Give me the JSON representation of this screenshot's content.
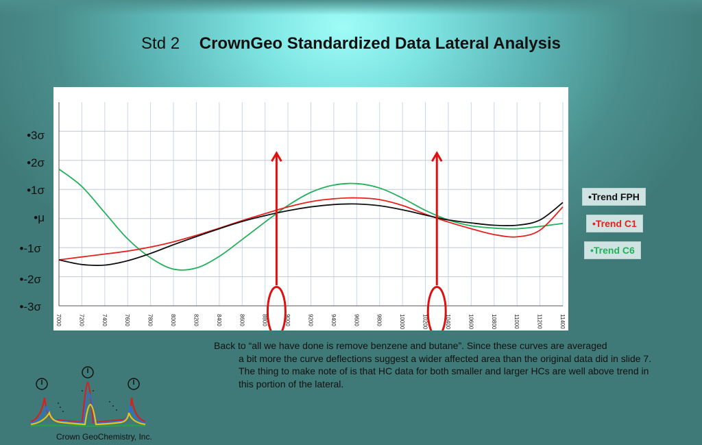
{
  "slide": {
    "title_prefix": "Std 2",
    "title_main": "CrownGeo Standardized Data Lateral Analysis",
    "caption_first": "Back to “all we have done is remove benzene and butane”. Since these curves are averaged",
    "caption_rest": "a bit more the curve deflections suggest a wider affected area than the original data did in slide 7. The thing to make note of is that HC data for both smaller and larger HCs are well above trend in this portion of the lateral.",
    "company": "Crown GeoChemistry, Inc."
  },
  "colors": {
    "fph": "#111111",
    "c1": "#e8201c",
    "c6": "#22b05a",
    "annotation": "#e01010",
    "grid": "#c8d6ea"
  },
  "chart_data": {
    "type": "line",
    "title": "",
    "xlabel": "",
    "ylabel": "",
    "xlim": [
      7000,
      11400
    ],
    "ylim": [
      -3,
      4
    ],
    "x_ticks": [
      7000,
      7200,
      7400,
      7600,
      7800,
      8000,
      8200,
      8400,
      8600,
      8800,
      9000,
      9200,
      9400,
      9600,
      9800,
      10000,
      10200,
      10400,
      10600,
      10800,
      11000,
      11200,
      11400
    ],
    "y_ticks": [
      {
        "value": 3,
        "label": "•3σ"
      },
      {
        "value": 2,
        "label": "•2σ"
      },
      {
        "value": 1,
        "label": "•1σ"
      },
      {
        "value": 0,
        "label": "•μ"
      },
      {
        "value": -1,
        "label": "•-1σ"
      },
      {
        "value": -2,
        "label": "•-2σ"
      },
      {
        "value": -3,
        "label": "•-3σ"
      }
    ],
    "legend_position": "right",
    "series": [
      {
        "name": "•Trend FPH",
        "color_key": "fph",
        "x": [
          7000,
          7200,
          7400,
          7600,
          7800,
          8000,
          8200,
          8400,
          8600,
          8800,
          9000,
          9200,
          9400,
          9600,
          9800,
          10000,
          10200,
          10400,
          10600,
          10800,
          11000,
          11200,
          11400
        ],
        "y": [
          -1.42,
          -1.58,
          -1.6,
          -1.45,
          -1.2,
          -0.9,
          -0.62,
          -0.35,
          -0.1,
          0.1,
          0.27,
          0.4,
          0.48,
          0.5,
          0.44,
          0.3,
          0.12,
          -0.05,
          -0.15,
          -0.23,
          -0.23,
          -0.05,
          0.55
        ]
      },
      {
        "name": "•Trend C1",
        "color_key": "c1",
        "x": [
          7000,
          7200,
          7400,
          7600,
          7800,
          8000,
          8200,
          8400,
          8600,
          8800,
          9000,
          9200,
          9400,
          9600,
          9800,
          10000,
          10200,
          10400,
          10600,
          10800,
          11000,
          11200,
          11400
        ],
        "y": [
          -1.42,
          -1.32,
          -1.22,
          -1.12,
          -0.98,
          -0.8,
          -0.58,
          -0.33,
          -0.07,
          0.17,
          0.4,
          0.58,
          0.68,
          0.71,
          0.65,
          0.45,
          0.15,
          -0.12,
          -0.35,
          -0.55,
          -0.63,
          -0.4,
          0.4
        ]
      },
      {
        "name": "•Trend C6",
        "color_key": "c6",
        "x": [
          7000,
          7200,
          7400,
          7600,
          7800,
          8000,
          8200,
          8400,
          8600,
          8800,
          9000,
          9200,
          9400,
          9600,
          9800,
          10000,
          10200,
          10400,
          10600,
          10800,
          11000,
          11200,
          11400
        ],
        "y": [
          1.7,
          1.1,
          0.2,
          -0.7,
          -1.35,
          -1.74,
          -1.7,
          -1.3,
          -0.72,
          -0.12,
          0.45,
          0.9,
          1.15,
          1.2,
          1.05,
          0.7,
          0.28,
          -0.05,
          -0.25,
          -0.33,
          -0.35,
          -0.27,
          -0.17
        ]
      }
    ],
    "annotations": [
      {
        "type": "arrow-up",
        "x": 8900,
        "y_from": -2.3,
        "y_to": 2.25
      },
      {
        "type": "ellipse",
        "x": 8900,
        "y_center": -3.2
      },
      {
        "type": "arrow-up",
        "x": 10300,
        "y_from": -2.3,
        "y_to": 2.25
      },
      {
        "type": "ellipse",
        "x": 10300,
        "y_center": -3.2
      }
    ]
  },
  "legend": {
    "fph": "•Trend FPH",
    "c1": "•Trend C1",
    "c6": "•Trend C6"
  },
  "logo": {
    "icon": "crown-geochemistry-logo"
  }
}
